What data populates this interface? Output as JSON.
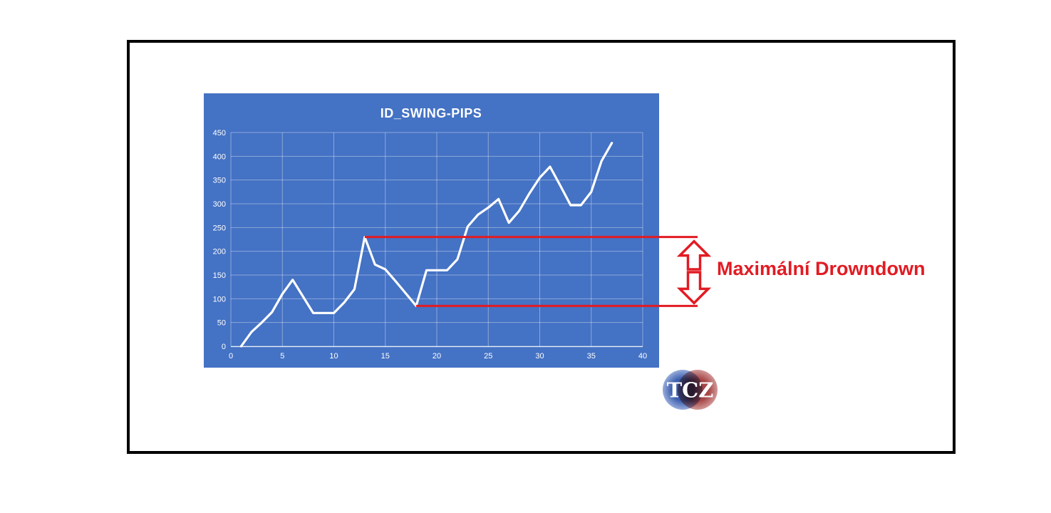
{
  "chart_data": {
    "type": "line",
    "title": "ID_SWING-PIPS",
    "xlabel": "",
    "ylabel": "",
    "x": [
      1,
      2,
      3,
      4,
      5,
      6,
      7,
      8,
      9,
      10,
      11,
      12,
      13,
      14,
      15,
      16,
      17,
      18,
      19,
      20,
      21,
      22,
      23,
      24,
      25,
      26,
      27,
      28,
      29,
      30,
      31,
      32,
      33,
      34,
      35,
      36,
      37
    ],
    "values": [
      0,
      30,
      50,
      72,
      110,
      140,
      105,
      70,
      70,
      70,
      92,
      120,
      230,
      172,
      162,
      137,
      111,
      85,
      160,
      160,
      160,
      183,
      252,
      277,
      292,
      310,
      260,
      285,
      322,
      355,
      378,
      338,
      297,
      297,
      325,
      390,
      428
    ],
    "xlim": [
      0,
      40
    ],
    "ylim": [
      0,
      450
    ],
    "x_ticks": [
      0,
      5,
      10,
      15,
      20,
      25,
      30,
      35,
      40
    ],
    "y_ticks": [
      0,
      50,
      100,
      150,
      200,
      250,
      300,
      350,
      400,
      450
    ],
    "grid": true,
    "legend_position": "none",
    "background": "#4472c4",
    "series_color": "#ffffff",
    "gridline_color": "rgba(255,255,255,0.38)",
    "axis_line_color": "rgba(255,255,255,0.85)",
    "tick_label_color": "#ffffff"
  },
  "annotation": {
    "label": "Maximální Drowndown",
    "color": "#e21b23",
    "top_line_value": 230,
    "bottom_line_value": 85,
    "peak_x": 13,
    "trough_x": 18,
    "arrow_fill": "#ffffff"
  },
  "logo": {
    "text": "TCZ",
    "blue": "#3d5fae",
    "blue_light": "#93a9d9",
    "red": "#a64545",
    "red_light": "#cf9494"
  },
  "frame": {
    "border_color": "#000000"
  }
}
